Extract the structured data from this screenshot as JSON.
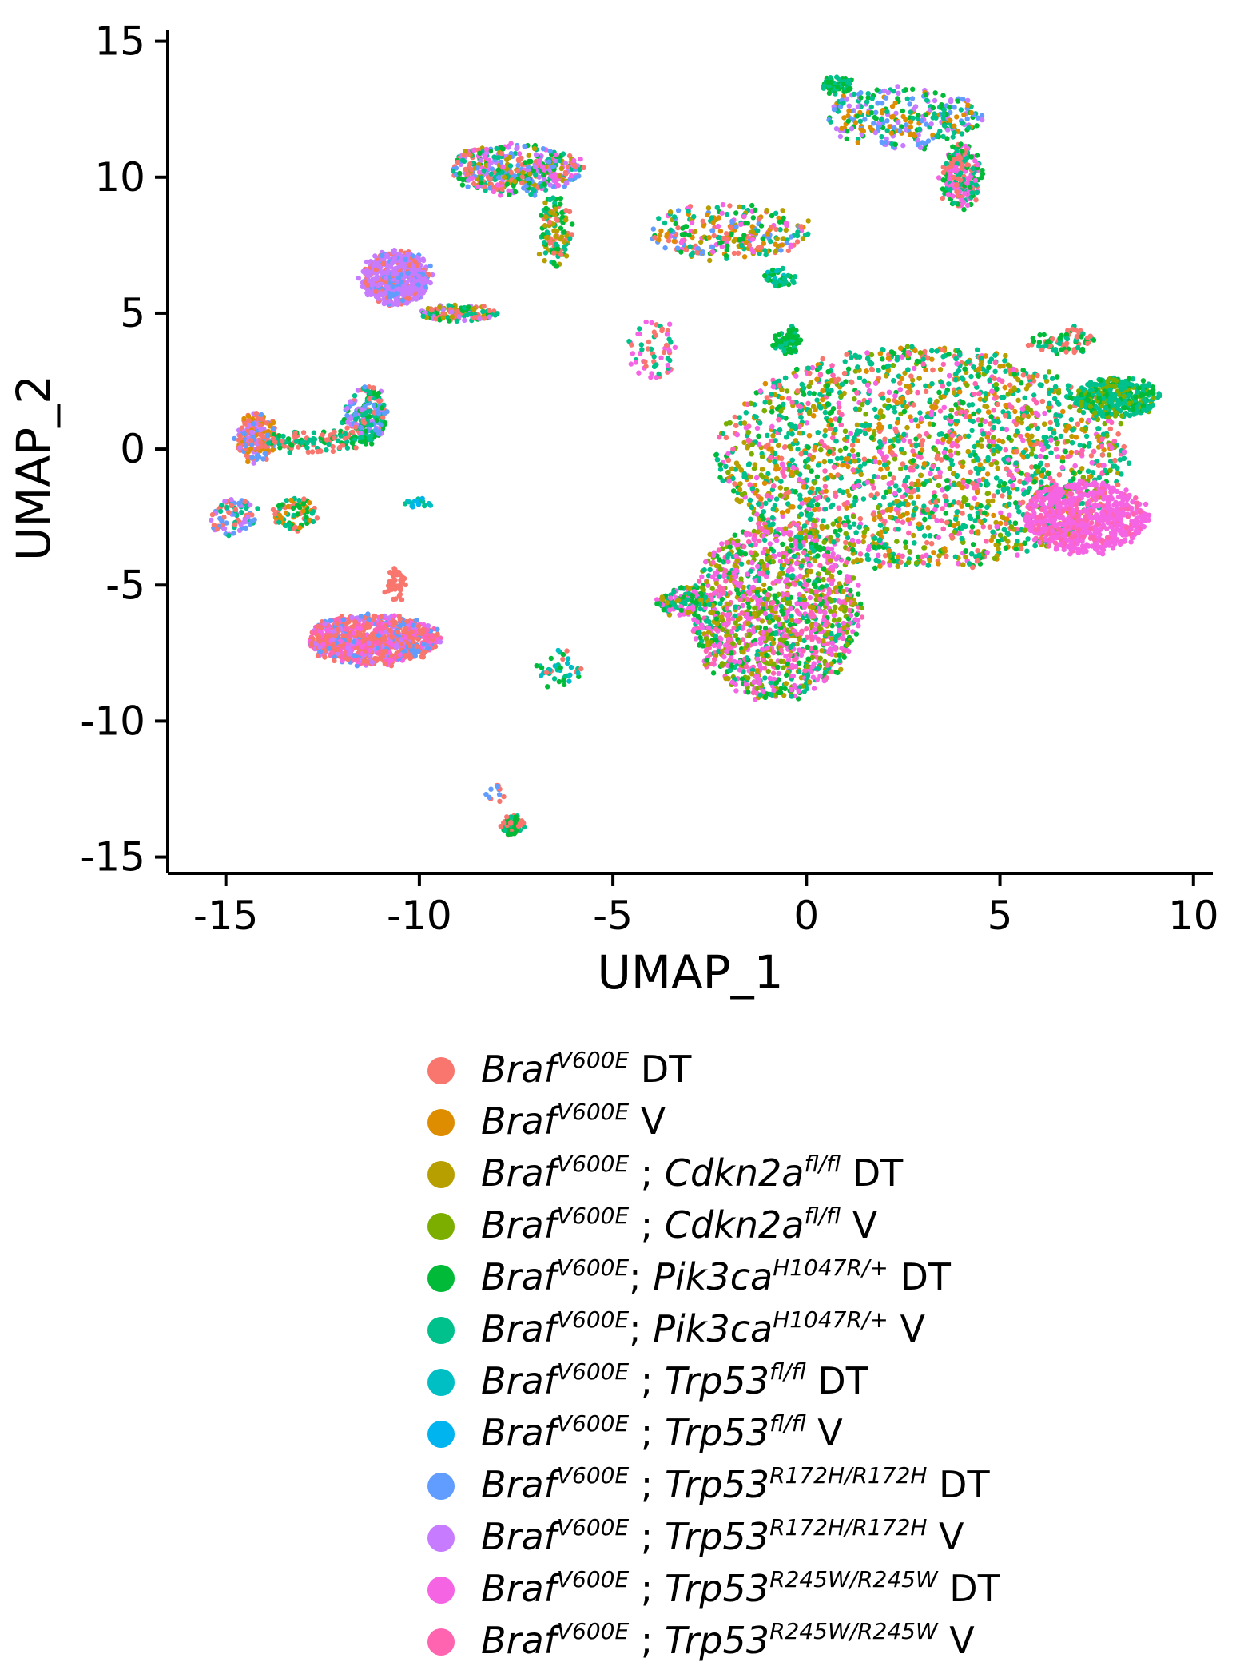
{
  "chart_data": {
    "type": "scatter",
    "title": "",
    "xlabel": "UMAP_1",
    "ylabel": "UMAP_2",
    "xlim": [
      -16.5,
      10.5
    ],
    "ylim": [
      -15.6,
      15.4
    ],
    "xticks": [
      -15,
      -10,
      -5,
      0,
      5,
      10
    ],
    "yticks": [
      -15,
      -10,
      -5,
      0,
      5,
      10,
      15
    ],
    "xtick_labels": [
      "-15",
      "-10",
      "-5",
      "0",
      "5",
      "10"
    ],
    "ytick_labels": [
      "-15",
      "-10",
      "-5",
      "0",
      "5",
      "10",
      "15"
    ],
    "grid": false,
    "legend_position": "bottom",
    "series": [
      {
        "color": "#F8766D",
        "label": {
          "gene": "Braf",
          "sup": "V600E",
          "sep": " ",
          "gene2": "",
          "sup2": "",
          "tail": "DT"
        }
      },
      {
        "color": "#DE8C00",
        "label": {
          "gene": "Braf",
          "sup": "V600E",
          "sep": " ",
          "gene2": "",
          "sup2": "",
          "tail": "V"
        }
      },
      {
        "color": "#B79F00",
        "label": {
          "gene": "Braf",
          "sup": "V600E",
          "sep": " ; ",
          "gene2": "Cdkn2a",
          "sup2": "fl/fl",
          "tail": "DT"
        }
      },
      {
        "color": "#7CAE00",
        "label": {
          "gene": "Braf",
          "sup": "V600E",
          "sep": " ; ",
          "gene2": "Cdkn2a",
          "sup2": "fl/fl",
          "tail": "V"
        }
      },
      {
        "color": "#00BA38",
        "label": {
          "gene": "Braf",
          "sup": "V600E",
          "sep": "; ",
          "gene2": "Pik3ca",
          "sup2": "H1047R/+",
          "tail": "DT"
        }
      },
      {
        "color": "#00C08B",
        "label": {
          "gene": "Braf",
          "sup": "V600E",
          "sep": "; ",
          "gene2": "Pik3ca",
          "sup2": "H1047R/+",
          "tail": "V"
        }
      },
      {
        "color": "#00BFC4",
        "label": {
          "gene": "Braf",
          "sup": "V600E",
          "sep": " ; ",
          "gene2": "Trp53",
          "sup2": "fl/fl",
          "tail": "DT"
        }
      },
      {
        "color": "#00B4F0",
        "label": {
          "gene": "Braf",
          "sup": "V600E",
          "sep": " ; ",
          "gene2": "Trp53",
          "sup2": "fl/fl",
          "tail": "V"
        }
      },
      {
        "color": "#619CFF",
        "label": {
          "gene": "Braf",
          "sup": "V600E",
          "sep": " ; ",
          "gene2": "Trp53",
          "sup2": "R172H/R172H",
          "tail": "DT"
        }
      },
      {
        "color": "#C77CFF",
        "label": {
          "gene": "Braf",
          "sup": "V600E",
          "sep": " ; ",
          "gene2": "Trp53",
          "sup2": "R172H/R172H",
          "tail": "V"
        }
      },
      {
        "color": "#F564E3",
        "label": {
          "gene": "Braf",
          "sup": "V600E",
          "sep": " ; ",
          "gene2": "Trp53",
          "sup2": "R245W/R245W",
          "tail": "DT"
        }
      },
      {
        "color": "#FF64B0",
        "label": {
          "gene": "Braf",
          "sup": "V600E",
          "sep": " ; ",
          "gene2": "Trp53",
          "sup2": "R245W/R245W",
          "tail": "V"
        }
      }
    ],
    "clusters": [
      {
        "cx": 3.0,
        "cy": -0.3,
        "rx": 5.3,
        "ry": 4.1,
        "n": 4200,
        "mix": [
          0,
          2,
          3,
          4,
          5,
          5,
          5,
          10,
          11,
          1
        ]
      },
      {
        "cx": -0.8,
        "cy": -6.0,
        "rx": 2.2,
        "ry": 3.2,
        "n": 1700,
        "mix": [
          4,
          5,
          10,
          11,
          10,
          3,
          2
        ]
      },
      {
        "cx": 7.2,
        "cy": -2.5,
        "rx": 1.6,
        "ry": 1.3,
        "n": 700,
        "mix": [
          10,
          10,
          10,
          11
        ]
      },
      {
        "cx": 8.0,
        "cy": 1.9,
        "rx": 1.1,
        "ry": 0.7,
        "n": 350,
        "mix": [
          5,
          5,
          4,
          3
        ]
      },
      {
        "cx": -0.5,
        "cy": 4.0,
        "rx": 0.35,
        "ry": 0.5,
        "n": 90,
        "mix": [
          4,
          4,
          5
        ]
      },
      {
        "cx": -3.2,
        "cy": -5.6,
        "rx": 0.7,
        "ry": 0.5,
        "n": 120,
        "mix": [
          10,
          5,
          4,
          2
        ]
      },
      {
        "cx": -11.2,
        "cy": -7.0,
        "rx": 1.7,
        "ry": 0.9,
        "n": 900,
        "mix": [
          0,
          0,
          8,
          9,
          10,
          11,
          0
        ]
      },
      {
        "cx": -10.6,
        "cy": -5.0,
        "rx": 0.2,
        "ry": 0.6,
        "n": 50,
        "mix": [
          0
        ]
      },
      {
        "cx": -10.6,
        "cy": 6.3,
        "rx": 0.9,
        "ry": 1.0,
        "n": 600,
        "mix": [
          9,
          9,
          9,
          9,
          8,
          0
        ]
      },
      {
        "cx": -9.0,
        "cy": 5.0,
        "rx": 1.0,
        "ry": 0.25,
        "n": 140,
        "mix": [
          9,
          0,
          4,
          5,
          2
        ]
      },
      {
        "cx": -7.5,
        "cy": 10.3,
        "rx": 1.7,
        "ry": 0.9,
        "n": 450,
        "mix": [
          8,
          9,
          10,
          4,
          5,
          0,
          2
        ]
      },
      {
        "cx": -6.5,
        "cy": 8.0,
        "rx": 0.4,
        "ry": 1.3,
        "n": 120,
        "mix": [
          4,
          5,
          0,
          2
        ]
      },
      {
        "cx": -14.2,
        "cy": 0.4,
        "rx": 0.5,
        "ry": 0.9,
        "n": 200,
        "mix": [
          0,
          0,
          1,
          8,
          9
        ]
      },
      {
        "cx": -11.4,
        "cy": 1.3,
        "rx": 0.6,
        "ry": 1.0,
        "n": 220,
        "mix": [
          4,
          5,
          8,
          9,
          0
        ]
      },
      {
        "cx": -12.6,
        "cy": 0.3,
        "rx": 1.4,
        "ry": 0.4,
        "n": 120,
        "mix": [
          0,
          4,
          5
        ]
      },
      {
        "cx": -14.8,
        "cy": -2.5,
        "rx": 0.6,
        "ry": 0.7,
        "n": 90,
        "mix": [
          8,
          9,
          0,
          5
        ]
      },
      {
        "cx": -13.2,
        "cy": -2.4,
        "rx": 0.6,
        "ry": 0.6,
        "n": 80,
        "mix": [
          0,
          4,
          5,
          1
        ]
      },
      {
        "cx": -2.0,
        "cy": 8.0,
        "rx": 2.1,
        "ry": 1.0,
        "n": 280,
        "mix": [
          0,
          1,
          2,
          4,
          5,
          8,
          10
        ]
      },
      {
        "cx": -0.7,
        "cy": 6.3,
        "rx": 0.4,
        "ry": 0.3,
        "n": 40,
        "mix": [
          4,
          5,
          6
        ]
      },
      {
        "cx": 2.5,
        "cy": 12.2,
        "rx": 2.0,
        "ry": 1.1,
        "n": 300,
        "mix": [
          4,
          5,
          9,
          8,
          1
        ]
      },
      {
        "cx": 4.0,
        "cy": 10.0,
        "rx": 0.5,
        "ry": 1.2,
        "n": 200,
        "mix": [
          4,
          5,
          10,
          0
        ]
      },
      {
        "cx": 0.8,
        "cy": 13.4,
        "rx": 0.4,
        "ry": 0.3,
        "n": 80,
        "mix": [
          4,
          5
        ]
      },
      {
        "cx": -4.0,
        "cy": 3.7,
        "rx": 0.7,
        "ry": 1.1,
        "n": 60,
        "mix": [
          0,
          5,
          10
        ]
      },
      {
        "cx": 6.6,
        "cy": 4.0,
        "rx": 0.9,
        "ry": 0.5,
        "n": 80,
        "mix": [
          0,
          4,
          5
        ]
      },
      {
        "cx": -10.0,
        "cy": -2.0,
        "rx": 0.4,
        "ry": 0.15,
        "n": 20,
        "mix": [
          5,
          6,
          7
        ]
      },
      {
        "cx": -6.4,
        "cy": -8.1,
        "rx": 0.6,
        "ry": 0.7,
        "n": 40,
        "mix": [
          4,
          5,
          6,
          0
        ]
      },
      {
        "cx": -7.6,
        "cy": -13.8,
        "rx": 0.3,
        "ry": 0.35,
        "n": 70,
        "mix": [
          4,
          5,
          0
        ]
      },
      {
        "cx": -8.0,
        "cy": -12.7,
        "rx": 0.2,
        "ry": 0.4,
        "n": 12,
        "mix": [
          0,
          8
        ]
      }
    ]
  }
}
